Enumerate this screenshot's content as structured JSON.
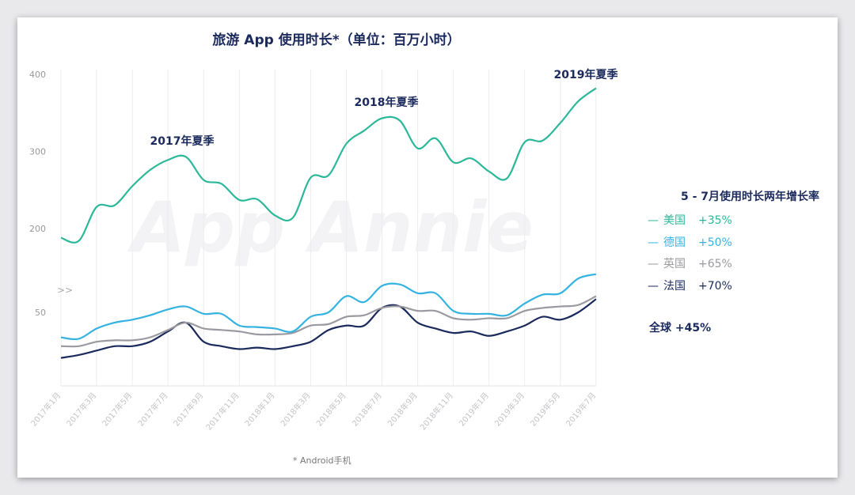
{
  "chart_data": {
    "type": "line",
    "title": "旅游 App 使用时长*（单位：百万小时）",
    "xlabel": "",
    "ylabel": "",
    "y_ticks": [
      "400",
      "300",
      "200",
      "50"
    ],
    "axis_break_marker": ">>",
    "x_tick_labels": [
      "2017年1月",
      "2017年3月",
      "2017年5月",
      "2017年7月",
      "2017年9月",
      "2017年11月",
      "2018年1月",
      "2018年3月",
      "2018年5月",
      "2018年7月",
      "2018年9月",
      "2018年11月",
      "2019年1月",
      "2019年3月",
      "2019年5月",
      "2019年7月"
    ],
    "x_months_count": 31,
    "series": [
      {
        "name": "美国",
        "color": "#2bb89a",
        "values": [
          188,
          184,
          228,
          230,
          255,
          276,
          289,
          293,
          263,
          258,
          237,
          238,
          217,
          214,
          266,
          269,
          310,
          327,
          343,
          340,
          304,
          317,
          286,
          291,
          274,
          265,
          312,
          314,
          337,
          365,
          382
        ]
      },
      {
        "name": "德国",
        "color": "#35b3e0",
        "values": [
          33,
          32,
          39,
          43,
          45,
          48,
          52,
          54,
          49,
          49,
          41,
          40,
          39,
          37,
          47,
          50,
          61,
          57,
          68,
          69,
          63,
          63,
          51,
          49,
          49,
          48,
          56,
          62,
          63,
          73,
          76
        ]
      },
      {
        "name": "英国",
        "color": "#9a9aa0",
        "values": [
          27,
          27,
          30,
          31,
          31,
          33,
          38,
          43,
          39,
          38,
          37,
          35,
          35,
          36,
          41,
          42,
          47,
          48,
          53,
          54,
          51,
          51,
          46,
          45,
          46,
          46,
          51,
          53,
          54,
          55,
          61
        ]
      },
      {
        "name": "法国",
        "color": "#1b2a5c",
        "values": [
          19,
          21,
          24,
          27,
          27,
          30,
          37,
          43,
          30,
          27,
          25,
          26,
          25,
          27,
          30,
          38,
          41,
          41,
          53,
          54,
          43,
          39,
          36,
          37,
          34,
          37,
          41,
          47,
          45,
          50,
          59
        ]
      }
    ],
    "annotations": [
      "2017年夏季",
      "2018年夏季",
      "2019年夏季"
    ]
  },
  "legend": {
    "title": "5 - 7月使用时长两年增长率",
    "items": [
      {
        "dash": "—",
        "country": "美国",
        "growth": "+35%",
        "color": "#2bb89a"
      },
      {
        "dash": "—",
        "country": "德国",
        "growth": "+50%",
        "color": "#35b3e0"
      },
      {
        "dash": "—",
        "country": "英国",
        "growth": "+65%",
        "color": "#9a9aa0"
      },
      {
        "dash": "—",
        "country": "法国",
        "growth": "+70%",
        "color": "#1b2a5c"
      }
    ],
    "global": "全球 +45%"
  },
  "footnote": "* Android手机",
  "watermark": "App Annie"
}
